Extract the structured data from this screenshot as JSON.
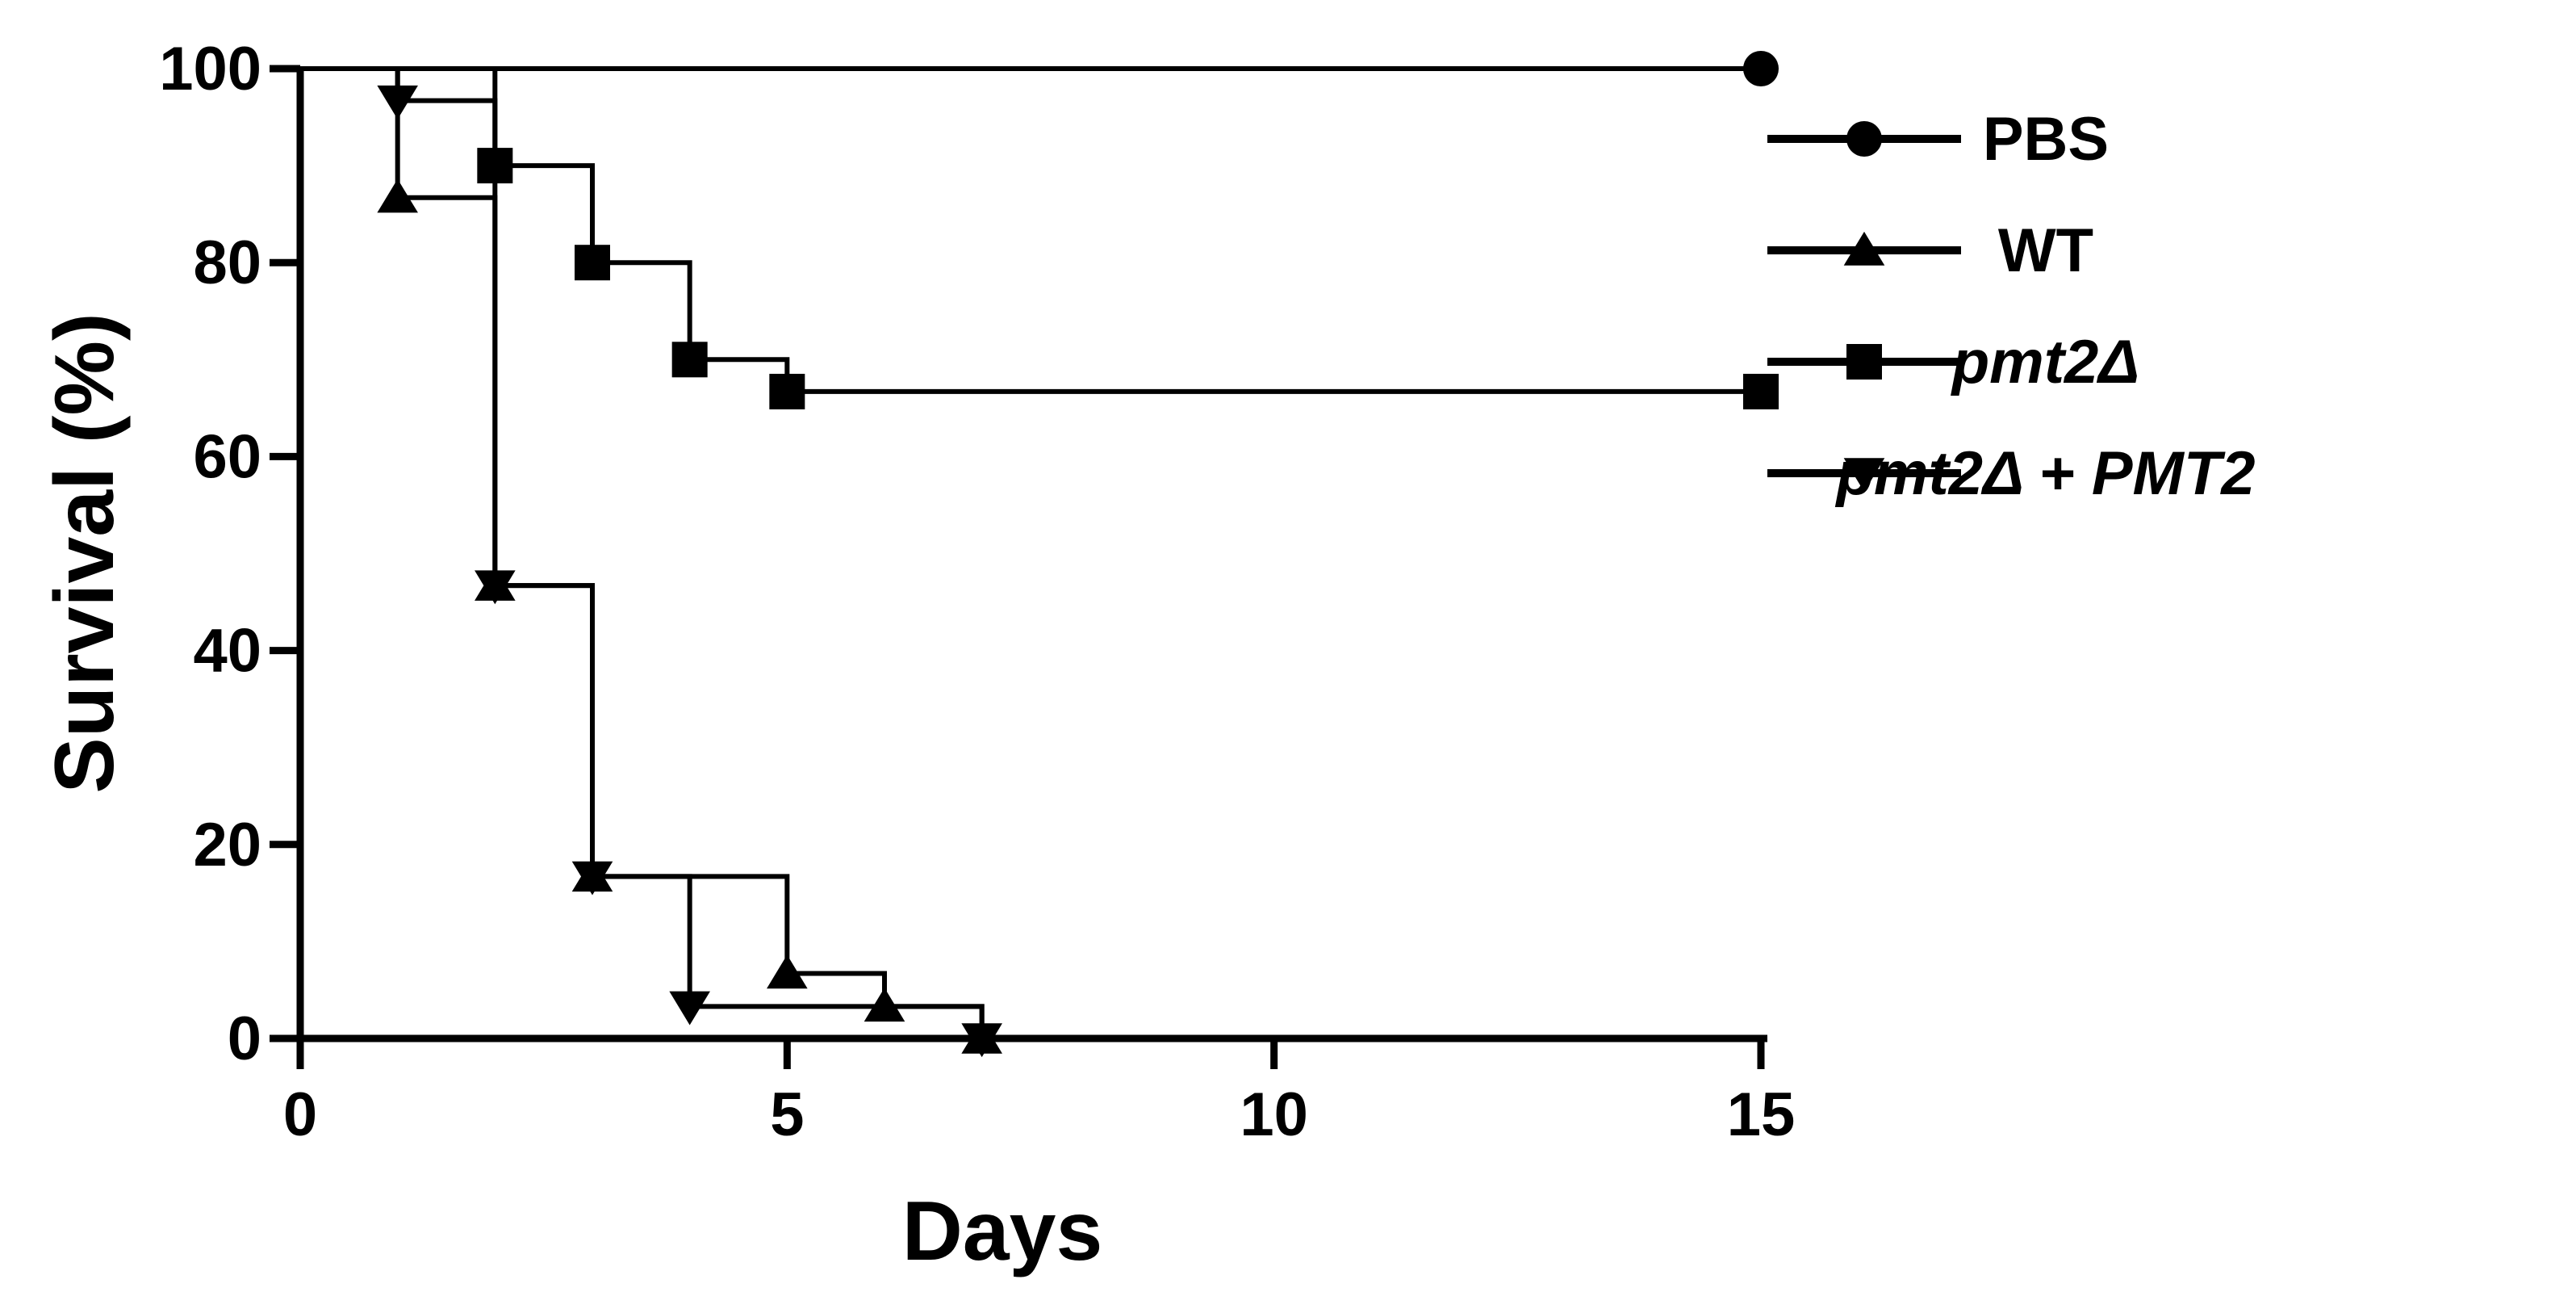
{
  "chart_data": {
    "type": "line",
    "subtype": "kaplan-meier-survival",
    "title": "",
    "xlabel": "Days",
    "ylabel": "Survival (%)",
    "xlim": [
      0,
      15
    ],
    "ylim": [
      0,
      100
    ],
    "x_ticks": [
      "0",
      "5",
      "10",
      "15"
    ],
    "y_ticks": [
      "0",
      "20",
      "40",
      "60",
      "80",
      "100"
    ],
    "grid": false,
    "legend_position": "right",
    "series": [
      {
        "name": "PBS",
        "marker": "circle",
        "steps": [
          [
            0,
            100
          ],
          [
            15,
            100
          ]
        ],
        "markers": [
          [
            15,
            100
          ]
        ]
      },
      {
        "name": "WT",
        "marker": "triangle-up",
        "steps": [
          [
            0,
            100
          ],
          [
            1,
            86.7
          ],
          [
            2,
            46.7
          ],
          [
            3,
            16.7
          ],
          [
            5,
            6.7
          ],
          [
            6,
            3.3
          ],
          [
            7,
            0
          ]
        ],
        "markers": [
          [
            1,
            86.7
          ],
          [
            2,
            46.7
          ],
          [
            3,
            16.7
          ],
          [
            5,
            6.7
          ],
          [
            6,
            3.3
          ],
          [
            7,
            0
          ]
        ]
      },
      {
        "name": "pmt2Δ",
        "marker": "square",
        "steps": [
          [
            0,
            100
          ],
          [
            2,
            90
          ],
          [
            3,
            80
          ],
          [
            4,
            70
          ],
          [
            5,
            66.7
          ],
          [
            15,
            66.7
          ]
        ],
        "markers": [
          [
            2,
            90
          ],
          [
            3,
            80
          ],
          [
            4,
            70
          ],
          [
            5,
            66.7
          ],
          [
            15,
            66.7
          ]
        ]
      },
      {
        "name": "pmt2Δ + PMT2",
        "marker": "triangle-down",
        "steps": [
          [
            0,
            100
          ],
          [
            1,
            96.7
          ],
          [
            2,
            46.7
          ],
          [
            3,
            16.7
          ],
          [
            4,
            3.3
          ],
          [
            7,
            0
          ]
        ],
        "markers": [
          [
            1,
            96.7
          ],
          [
            2,
            46.7
          ],
          [
            3,
            16.7
          ],
          [
            4,
            3.3
          ],
          [
            7,
            0
          ]
        ]
      }
    ],
    "legend": [
      {
        "label": "PBS",
        "italic": false
      },
      {
        "label": "WT",
        "italic": false
      },
      {
        "label": "pmt2Δ",
        "italic": true
      },
      {
        "label": "pmt2Δ + PMT2",
        "italic": true
      }
    ]
  }
}
